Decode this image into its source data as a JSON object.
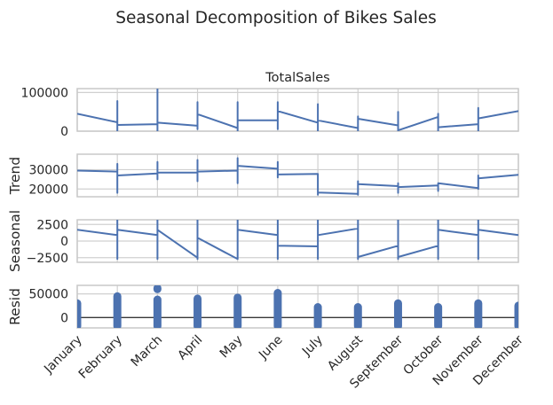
{
  "figure": {
    "title": "Seasonal Decomposition of Bikes Sales"
  },
  "chart_data": {
    "type": "line",
    "categories": [
      "January",
      "February",
      "March",
      "April",
      "May",
      "June",
      "July",
      "August",
      "September",
      "October",
      "November",
      "December"
    ],
    "subplots": [
      {
        "id": "observed",
        "title": "TotalSales",
        "ylabel": "",
        "yticks": [
          0,
          100000
        ],
        "ytick_labels": [
          "0",
          "100000"
        ],
        "ylim": [
          0,
          110000
        ],
        "style": "line",
        "series": [
          {
            "points": [
              [
                0.0,
                45000
              ],
              [
                1.0,
                23000
              ],
              [
                1.0,
                78000
              ],
              [
                1.0,
                0
              ],
              [
                1.0,
                16000
              ],
              [
                2.0,
                18000
              ],
              [
                2.0,
                110000
              ],
              [
                2.0,
                0
              ],
              [
                2.0,
                22000
              ],
              [
                3.0,
                14000
              ],
              [
                3.0,
                75000
              ],
              [
                3.0,
                5000
              ],
              [
                3.0,
                44000
              ],
              [
                4.0,
                8000
              ],
              [
                4.0,
                75000
              ],
              [
                4.0,
                0
              ],
              [
                4.0,
                28000
              ],
              [
                5.0,
                28000
              ],
              [
                5.0,
                75000
              ],
              [
                5.0,
                5000
              ],
              [
                5.0,
                52000
              ],
              [
                6.0,
                22000
              ],
              [
                6.0,
                70000
              ],
              [
                6.0,
                0
              ],
              [
                6.0,
                28000
              ],
              [
                7.0,
                8000
              ],
              [
                7.0,
                38000
              ],
              [
                7.0,
                0
              ],
              [
                7.0,
                32000
              ],
              [
                8.0,
                15000
              ],
              [
                8.0,
                50000
              ],
              [
                8.0,
                0
              ],
              [
                8.0,
                2000
              ],
              [
                9.0,
                37000
              ],
              [
                9.0,
                45000
              ],
              [
                9.0,
                0
              ],
              [
                9.0,
                10000
              ],
              [
                10.0,
                18000
              ],
              [
                10.0,
                60000
              ],
              [
                10.0,
                0
              ],
              [
                10.0,
                33000
              ],
              [
                11.0,
                52000
              ]
            ]
          }
        ]
      },
      {
        "id": "trend",
        "title": "",
        "ylabel": "Trend",
        "yticks": [
          20000,
          30000
        ],
        "ytick_labels": [
          "20000",
          "30000"
        ],
        "ylim": [
          16000,
          38000
        ],
        "style": "line",
        "series": [
          {
            "points": [
              [
                0.0,
                29500
              ],
              [
                1.0,
                29000
              ],
              [
                1.0,
                33000
              ],
              [
                1.0,
                18000
              ],
              [
                1.0,
                27000
              ],
              [
                2.0,
                28000
              ],
              [
                2.0,
                34000
              ],
              [
                2.0,
                25000
              ],
              [
                2.0,
                28500
              ],
              [
                3.0,
                28500
              ],
              [
                3.0,
                35000
              ],
              [
                3.0,
                24000
              ],
              [
                3.0,
                29000
              ],
              [
                4.0,
                29500
              ],
              [
                4.0,
                36000
              ],
              [
                4.0,
                23000
              ],
              [
                4.0,
                32000
              ],
              [
                5.0,
                30500
              ],
              [
                5.0,
                34000
              ],
              [
                5.0,
                26000
              ],
              [
                5.0,
                27500
              ],
              [
                6.0,
                27800
              ],
              [
                6.0,
                27800
              ],
              [
                6.0,
                17000
              ],
              [
                6.0,
                18200
              ],
              [
                7.0,
                17500
              ],
              [
                7.0,
                24000
              ],
              [
                7.0,
                17000
              ],
              [
                7.0,
                22500
              ],
              [
                8.0,
                21500
              ],
              [
                8.0,
                23000
              ],
              [
                8.0,
                18000
              ],
              [
                8.0,
                21000
              ],
              [
                9.0,
                21800
              ],
              [
                9.0,
                23000
              ],
              [
                9.0,
                19000
              ],
              [
                9.0,
                23000
              ],
              [
                10.0,
                20500
              ],
              [
                10.0,
                27000
              ],
              [
                10.0,
                20000
              ],
              [
                10.0,
                25500
              ],
              [
                11.0,
                27300
              ]
            ]
          }
        ]
      },
      {
        "id": "seasonal",
        "title": "",
        "ylabel": "Seasonal",
        "yticks": [
          -2500,
          0,
          2500
        ],
        "ytick_labels": [
          "−2500",
          "0",
          "2500"
        ],
        "ylim": [
          -3200,
          3200
        ],
        "style": "line",
        "series": [
          {
            "points": [
              [
                0.0,
                1700
              ],
              [
                1.0,
                900
              ],
              [
                1.0,
                3200
              ],
              [
                1.0,
                -2700
              ],
              [
                1.0,
                1700
              ],
              [
                2.0,
                900
              ],
              [
                2.0,
                3200
              ],
              [
                2.0,
                -2700
              ],
              [
                2.0,
                1700
              ],
              [
                3.0,
                -2500
              ],
              [
                3.0,
                3200
              ],
              [
                3.0,
                -2700
              ],
              [
                3.0,
                500
              ],
              [
                4.0,
                -2700
              ],
              [
                4.0,
                3200
              ],
              [
                4.0,
                -2700
              ],
              [
                4.0,
                1700
              ],
              [
                5.0,
                900
              ],
              [
                5.0,
                3200
              ],
              [
                5.0,
                -2700
              ],
              [
                5.0,
                -700
              ],
              [
                6.0,
                -800
              ],
              [
                6.0,
                3200
              ],
              [
                6.0,
                -2700
              ],
              [
                6.0,
                900
              ],
              [
                7.0,
                1900
              ],
              [
                7.0,
                3200
              ],
              [
                7.0,
                -2700
              ],
              [
                7.0,
                -2400
              ],
              [
                8.0,
                -700
              ],
              [
                8.0,
                3200
              ],
              [
                8.0,
                -2700
              ],
              [
                8.0,
                -2400
              ],
              [
                9.0,
                -700
              ],
              [
                9.0,
                3200
              ],
              [
                9.0,
                -2700
              ],
              [
                9.0,
                1700
              ],
              [
                10.0,
                900
              ],
              [
                10.0,
                3200
              ],
              [
                10.0,
                -2700
              ],
              [
                10.0,
                1700
              ],
              [
                11.0,
                900
              ]
            ]
          }
        ]
      },
      {
        "id": "resid",
        "title": "",
        "ylabel": "Resid",
        "yticks": [
          0,
          50000
        ],
        "ytick_labels": [
          "0",
          "50000"
        ],
        "ylim": [
          -22000,
          68000
        ],
        "style": "scatter",
        "baseline": 0,
        "clusters": [
          {
            "x": 0.0,
            "min": -18000,
            "max": 30000
          },
          {
            "x": 1.0,
            "min": -18000,
            "max": 45000
          },
          {
            "x": 2.0,
            "min": -18000,
            "max": 38000
          },
          {
            "x": 2.0,
            "min": 60000,
            "max": 62000
          },
          {
            "x": 3.0,
            "min": -18000,
            "max": 40000
          },
          {
            "x": 4.0,
            "min": -18000,
            "max": 42000
          },
          {
            "x": 5.0,
            "min": -18000,
            "max": 52000
          },
          {
            "x": 6.0,
            "min": -18000,
            "max": 22000
          },
          {
            "x": 7.0,
            "min": -18000,
            "max": 22000
          },
          {
            "x": 8.0,
            "min": -18000,
            "max": 30000
          },
          {
            "x": 9.0,
            "min": -18000,
            "max": 22000
          },
          {
            "x": 10.0,
            "min": -18000,
            "max": 30000
          },
          {
            "x": 11.0,
            "min": -18000,
            "max": 25000
          }
        ]
      }
    ],
    "grid": true,
    "colors": {
      "line": "#4c72b0",
      "grid": "#d0d0d0",
      "axis": "#c8c8c8",
      "baseline": "#000000"
    }
  }
}
